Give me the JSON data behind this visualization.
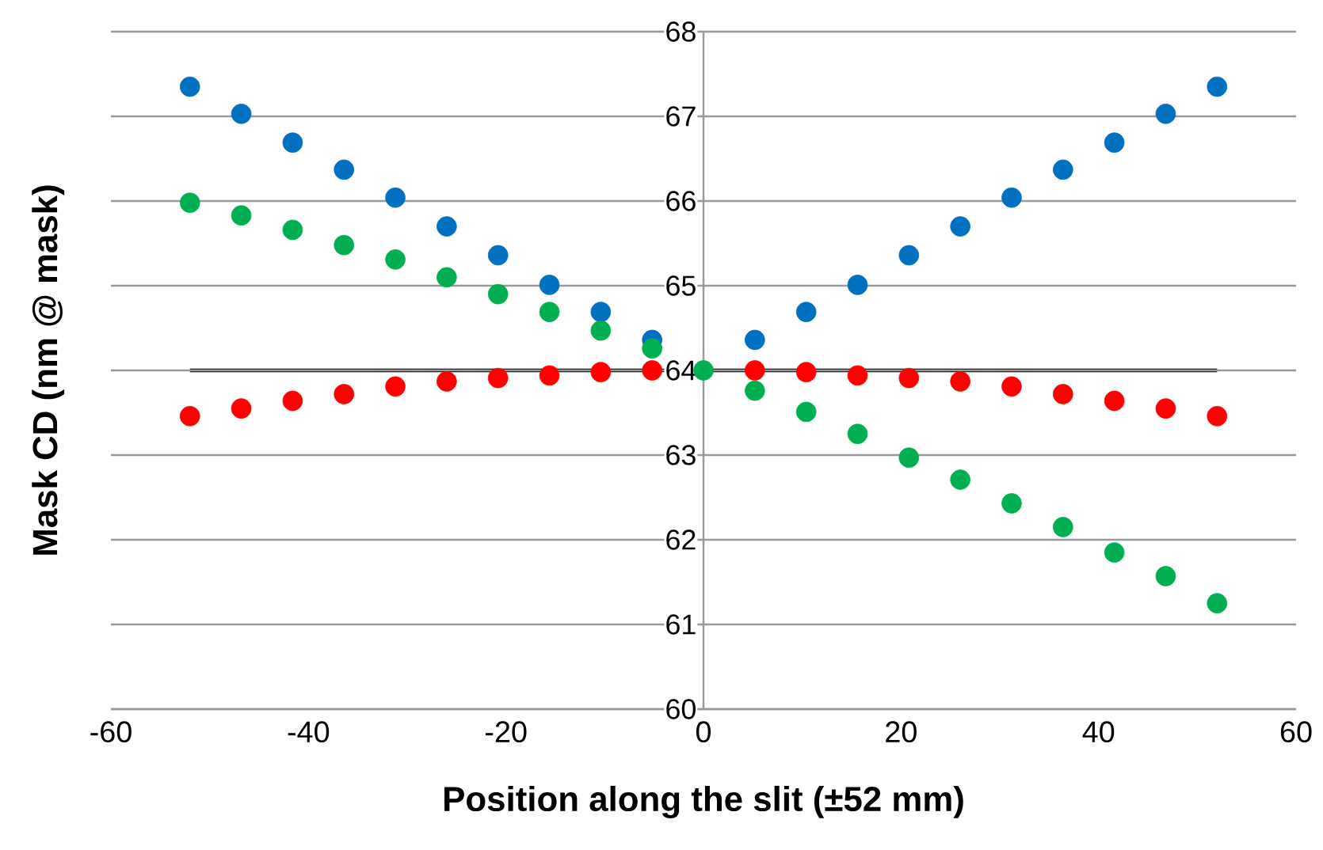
{
  "chart_data": {
    "type": "scatter",
    "xlabel": "Position along the slit (±52 mm)",
    "ylabel": "Mask CD (nm @ mask)",
    "xlim": [
      -60,
      60
    ],
    "ylim": [
      60,
      68
    ],
    "xticks": [
      -60,
      -40,
      -20,
      0,
      20,
      40,
      60
    ],
    "yticks": [
      60,
      61,
      62,
      63,
      64,
      65,
      66,
      67,
      68
    ],
    "grid": "y",
    "marker": "circle",
    "x": [
      -52,
      -46.8,
      -41.6,
      -36.4,
      -31.2,
      -26,
      -20.8,
      -15.6,
      -10.4,
      -5.2,
      0,
      5.2,
      10.4,
      15.6,
      20.8,
      26,
      31.2,
      36.4,
      41.6,
      46.8,
      52
    ],
    "series": [
      {
        "type": "line",
        "color": "#000000",
        "marker": "none",
        "line_style": "solid",
        "x": [
          -52,
          52
        ],
        "values": [
          64,
          64
        ]
      },
      {
        "color": "#0070c0",
        "values": [
          67.35,
          67.03,
          66.69,
          66.37,
          66.04,
          65.7,
          65.36,
          65.01,
          64.69,
          64.36,
          null,
          64.36,
          64.69,
          65.01,
          65.36,
          65.7,
          66.04,
          66.37,
          66.69,
          67.03,
          67.35
        ]
      },
      {
        "color": "#00b050",
        "values": [
          65.98,
          65.83,
          65.66,
          65.48,
          65.31,
          65.1,
          64.9,
          64.69,
          64.47,
          64.26,
          64.0,
          63.76,
          63.51,
          63.25,
          62.97,
          62.71,
          62.43,
          62.15,
          61.85,
          61.57,
          61.25
        ]
      },
      {
        "color": "#ff0000",
        "values": [
          63.46,
          63.55,
          63.64,
          63.72,
          63.81,
          63.87,
          63.91,
          63.94,
          63.98,
          64.0,
          null,
          64.0,
          63.98,
          63.94,
          63.91,
          63.87,
          63.81,
          63.72,
          63.64,
          63.55,
          63.46
        ]
      }
    ]
  }
}
